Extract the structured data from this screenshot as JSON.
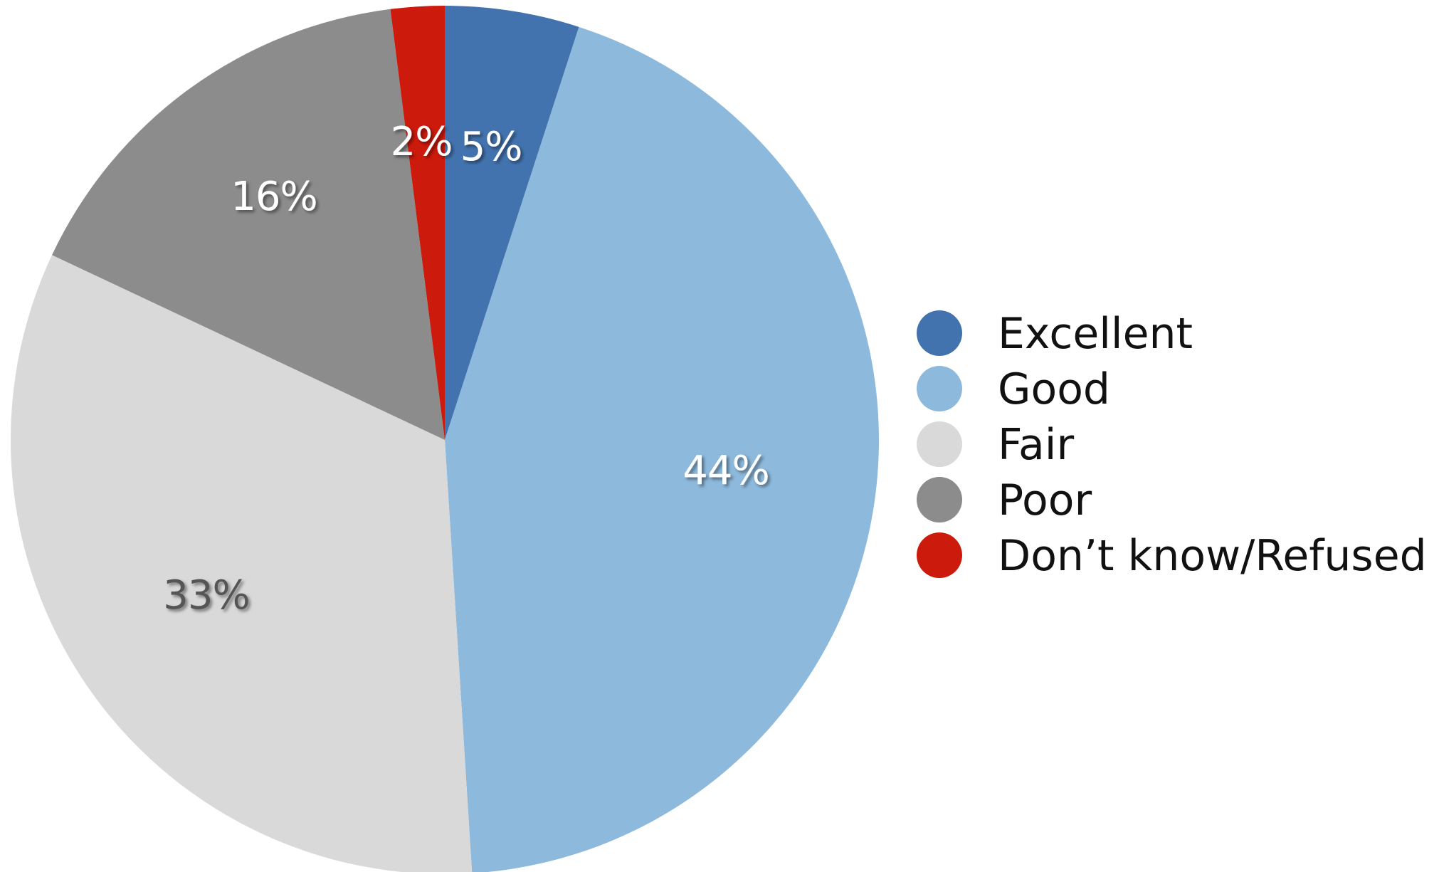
{
  "chart_data": {
    "type": "pie",
    "title": "",
    "start_angle_deg": 0,
    "direction": "clockwise",
    "slices": [
      {
        "label": "Excellent",
        "value": 5,
        "display": "5%",
        "color": "#4373ae",
        "label_color": "#ffffff"
      },
      {
        "label": "Good",
        "value": 44,
        "display": "44%",
        "color": "#8db9dc",
        "label_color": "#ffffff"
      },
      {
        "label": "Fair",
        "value": 33,
        "display": "33%",
        "color": "#d9d9d9",
        "label_color": "#555555"
      },
      {
        "label": "Poor",
        "value": 16,
        "display": "16%",
        "color": "#8c8c8c",
        "label_color": "#ffffff"
      },
      {
        "label": "Don’t know/Refused",
        "value": 2,
        "display": "2%",
        "color": "#cc1a0c",
        "label_color": "#ffffff"
      }
    ],
    "legend_position": "right"
  }
}
